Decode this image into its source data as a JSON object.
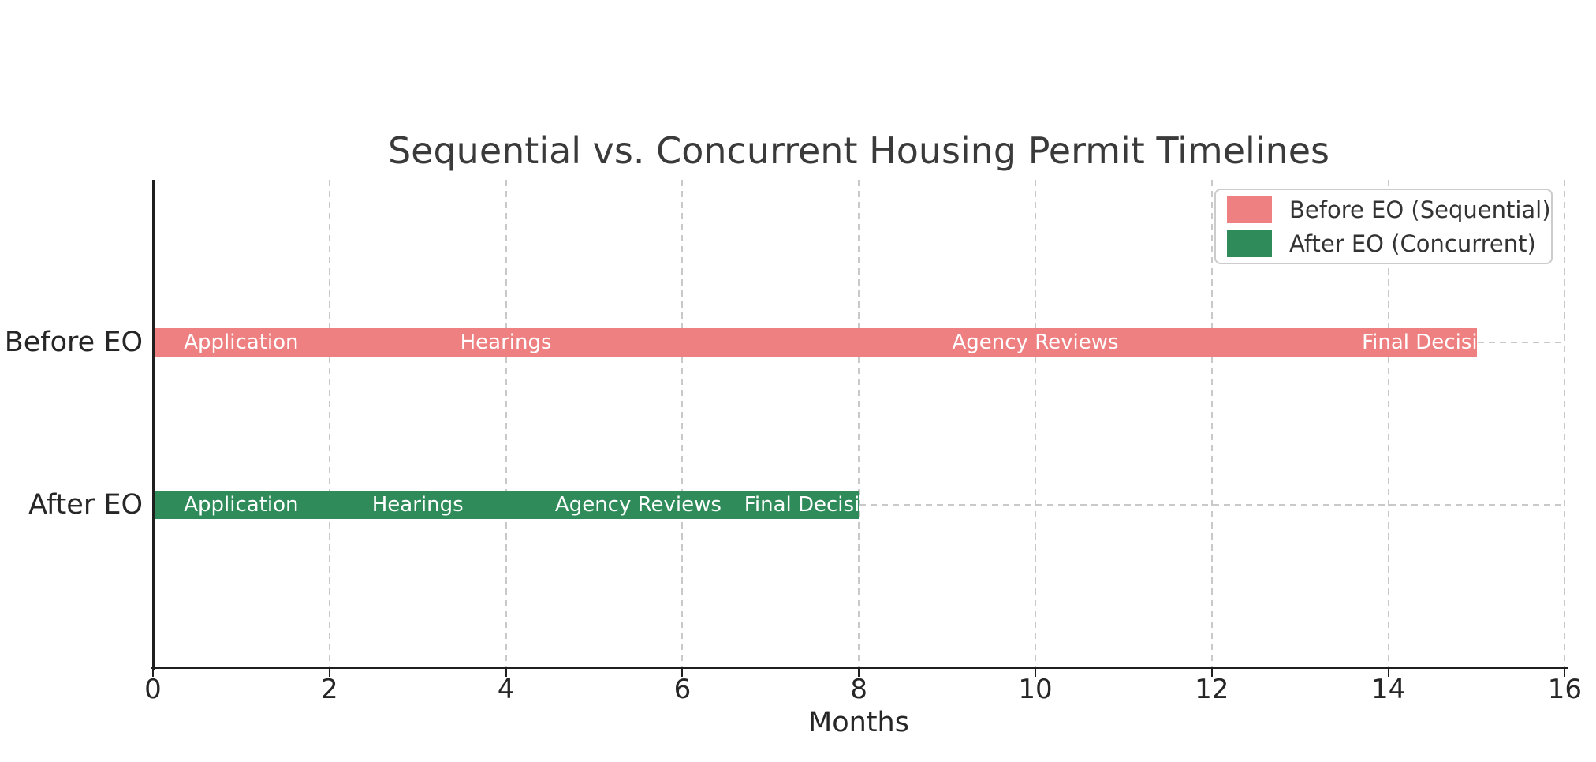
{
  "chart_data": {
    "type": "bar",
    "orientation": "horizontal",
    "title": "Sequential vs. Concurrent Housing Permit Timelines",
    "xlabel": "Months",
    "xlim": [
      0,
      16
    ],
    "xticks": [
      "0",
      "2",
      "4",
      "6",
      "8",
      "10",
      "12",
      "14",
      "16"
    ],
    "xtick_values": [
      0,
      2,
      4,
      6,
      8,
      10,
      12,
      14,
      16
    ],
    "grid": "dashed",
    "grid_color": "#c9c9c9",
    "categories": [
      "Before EO",
      "After EO"
    ],
    "legend_position": "upper right",
    "rows": [
      {
        "category": "Before EO",
        "legend_label": "Before EO (Sequential)",
        "color": "#ee8081",
        "total_months": 15,
        "segments": [
          {
            "label": "Application",
            "start": 0,
            "end": 2
          },
          {
            "label": "Hearings",
            "start": 2,
            "end": 6
          },
          {
            "label": "Agency Reviews",
            "start": 6,
            "end": 14
          },
          {
            "label": "Final Decision",
            "start": 14,
            "end": 15
          }
        ]
      },
      {
        "category": "After EO",
        "legend_label": "After EO (Concurrent)",
        "color": "#2f8c5a",
        "total_months": 8,
        "segments": [
          {
            "label": "Application",
            "start": 0,
            "end": 2
          },
          {
            "label": "Hearings",
            "start": 2,
            "end": 4
          },
          {
            "label": "Agency Reviews",
            "start": 4,
            "end": 7
          },
          {
            "label": "Final Decision",
            "start": 7,
            "end": 8
          }
        ]
      }
    ]
  }
}
